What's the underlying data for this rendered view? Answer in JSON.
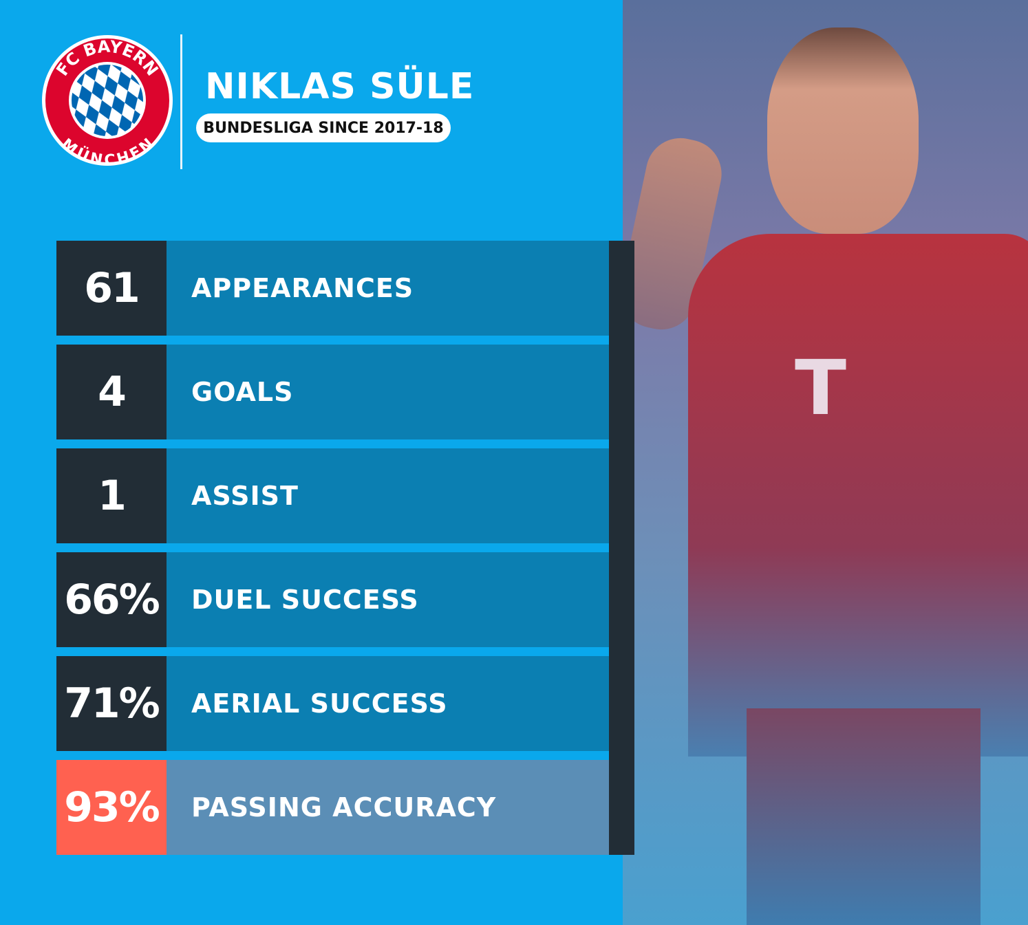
{
  "logo": {
    "top_text": "FC BAYERN",
    "bottom_text": "MÜNCHEN",
    "colors": {
      "red": "#dc052d",
      "blue": "#0066b2"
    }
  },
  "player": {
    "name": "NIKLAS SÜLE",
    "subtitle": "BUNDESLIGA SINCE 2017-18"
  },
  "stats": [
    {
      "value": "61",
      "label": "APPEARANCES"
    },
    {
      "value": "4",
      "label": "GOALS"
    },
    {
      "value": "1",
      "label": "ASSIST"
    },
    {
      "value": "66%",
      "label": "DUEL SUCCESS"
    },
    {
      "value": "71%",
      "label": "AERIAL SUCCESS"
    },
    {
      "value": "93%",
      "label": "PASSING ACCURACY",
      "highlight": true
    }
  ],
  "colors": {
    "background": "#0aa8ec",
    "dark": "#222d36",
    "row": "#0b7fb2",
    "highlight": "#ff6150",
    "highlight_row": "#5b8eb6"
  }
}
